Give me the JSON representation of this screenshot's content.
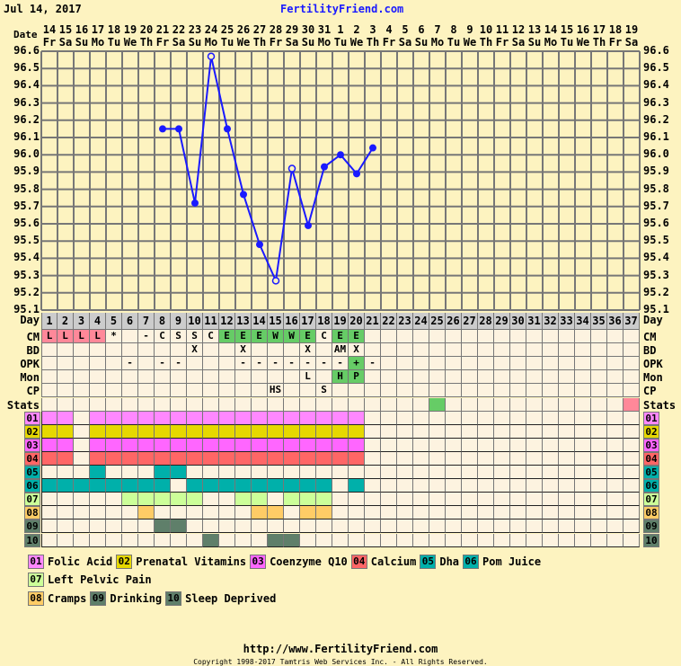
{
  "header": {
    "date": "Jul 14, 2017",
    "site": "FertilityFriend.com"
  },
  "labels": {
    "date": "Date",
    "day": "Day",
    "cm": "CM",
    "bd": "BD",
    "opk": "OPK",
    "mon": "Mon",
    "cp": "CP",
    "stats": "Stats"
  },
  "colors": {
    "bg": "#fdf3c0",
    "cell": "#fdf3e0",
    "header_row": "#cccccc",
    "line": "#1a1aff",
    "green": "#66cc66",
    "pink": "#ff8899",
    "grid": "#777777"
  },
  "chart_data": {
    "type": "line",
    "ylim": [
      95.1,
      96.6
    ],
    "yticks": [
      "96.6",
      "96.5",
      "96.4",
      "96.3",
      "96.2",
      "96.1",
      "96.0",
      "95.9",
      "95.8",
      "95.7",
      "95.6",
      "95.5",
      "95.4",
      "95.3",
      "95.2",
      "95.1"
    ],
    "dates": [
      "14",
      "15",
      "16",
      "17",
      "18",
      "19",
      "20",
      "21",
      "22",
      "23",
      "24",
      "25",
      "26",
      "27",
      "28",
      "29",
      "30",
      "31",
      "1",
      "2",
      "3",
      "4",
      "5",
      "6",
      "7",
      "8",
      "9",
      "10",
      "11",
      "12",
      "13",
      "14",
      "15",
      "16",
      "17",
      "18",
      "19"
    ],
    "weekdays": [
      "Fr",
      "Sa",
      "Su",
      "Mo",
      "Tu",
      "We",
      "Th",
      "Fr",
      "Sa",
      "Su",
      "Mo",
      "Tu",
      "We",
      "Th",
      "Fr",
      "Sa",
      "Su",
      "Mo",
      "Tu",
      "We",
      "Th",
      "Fr",
      "Sa",
      "Su",
      "Mo",
      "Tu",
      "We",
      "Th",
      "Fr",
      "Sa",
      "Su",
      "Mo",
      "Tu",
      "We",
      "Th",
      "Fr",
      "Sa"
    ],
    "days": [
      "1",
      "2",
      "3",
      "4",
      "5",
      "6",
      "7",
      "8",
      "9",
      "10",
      "11",
      "12",
      "13",
      "14",
      "15",
      "16",
      "17",
      "18",
      "19",
      "20",
      "21",
      "22",
      "23",
      "24",
      "25",
      "26",
      "27",
      "28",
      "29",
      "30",
      "31",
      "32",
      "33",
      "34",
      "35",
      "36",
      "37"
    ],
    "series": [
      {
        "x": [
          8,
          9,
          10,
          11,
          12,
          13,
          14,
          15,
          16,
          17,
          18,
          19,
          20,
          21
        ],
        "y": [
          96.15,
          96.15,
          95.72,
          96.57,
          96.15,
          95.77,
          95.48,
          95.27,
          95.92,
          95.59,
          95.93,
          96.0,
          95.89,
          96.04
        ],
        "open": [
          false,
          false,
          false,
          true,
          false,
          false,
          false,
          true,
          true,
          false,
          false,
          false,
          false,
          false
        ]
      }
    ]
  },
  "rows": {
    "cm": {
      "1": "L",
      "2": "L",
      "3": "L",
      "4": "L",
      "5": "*",
      "7": "-",
      "8": "C",
      "9": "S",
      "10": "S",
      "11": "C",
      "12": "E",
      "13": "E",
      "14": "E",
      "15": "W",
      "16": "W",
      "17": "E",
      "18": "C",
      "19": "E",
      "20": "E"
    },
    "cm_colors": {
      "1": "#ff8899",
      "2": "#ff8899",
      "3": "#ff8899",
      "4": "#ff8899",
      "12": "#66cc66",
      "13": "#66cc66",
      "14": "#66cc66",
      "15": "#66cc66",
      "16": "#66cc66",
      "17": "#66cc66",
      "19": "#66cc66",
      "20": "#66cc66"
    },
    "bd": {
      "10": "X",
      "13": "X",
      "17": "X",
      "19": "AM",
      "20": "X"
    },
    "opk": {
      "6": "-",
      "8": "-",
      "9": "-",
      "13": "-",
      "14": "-",
      "15": "-",
      "16": "-",
      "17": "-",
      "18": "-",
      "19": "-",
      "20": "+",
      "21": "-"
    },
    "opk_colors": {
      "20": "#66cc66"
    },
    "mon": {
      "17": "L",
      "19": "H",
      "20": "P"
    },
    "mon_colors": {
      "19": "#66cc66",
      "20": "#66cc66"
    },
    "cp": {
      "15": "HS",
      "18": "S"
    },
    "stats_colors": {
      "25": "#66cc66",
      "37": "#ff8899"
    }
  },
  "custom": [
    {
      "code": "01",
      "name": "Folic Acid",
      "color": "#ff88ff",
      "days": [
        1,
        2,
        4,
        5,
        6,
        7,
        8,
        9,
        10,
        11,
        12,
        13,
        14,
        15,
        16,
        17,
        18,
        19,
        20
      ]
    },
    {
      "code": "02",
      "name": "Prenatal Vitamins",
      "color": "#e6d800",
      "days": [
        1,
        2,
        4,
        5,
        6,
        7,
        8,
        9,
        10,
        11,
        12,
        13,
        14,
        15,
        16,
        17,
        18,
        19,
        20
      ]
    },
    {
      "code": "03",
      "name": "Coenzyme Q10",
      "color": "#ff66ff",
      "days": [
        1,
        2,
        4,
        5,
        6,
        7,
        8,
        9,
        10,
        11,
        12,
        13,
        14,
        15,
        16,
        17,
        18,
        19,
        20
      ]
    },
    {
      "code": "04",
      "name": "Calcium",
      "color": "#ff6666",
      "days": [
        1,
        2,
        4,
        5,
        6,
        7,
        8,
        9,
        10,
        11,
        12,
        13,
        14,
        15,
        16,
        17,
        18,
        19,
        20
      ]
    },
    {
      "code": "05",
      "name": "Dha",
      "color": "#00b0aa",
      "days": [
        4,
        8,
        9
      ]
    },
    {
      "code": "06",
      "name": "Pom Juice",
      "color": "#00b0aa",
      "days": [
        1,
        2,
        3,
        4,
        5,
        6,
        7,
        8,
        10,
        11,
        12,
        13,
        14,
        15,
        16,
        17,
        18,
        20
      ]
    },
    {
      "code": "07",
      "name": "Left Pelvic Pain",
      "color": "#ccff99",
      "days": [
        6,
        7,
        8,
        9,
        10,
        13,
        14,
        16,
        17,
        18
      ]
    },
    {
      "code": "08",
      "name": "Cramps",
      "color": "#ffcc66",
      "days": [
        7,
        14,
        15,
        17,
        18
      ]
    },
    {
      "code": "09",
      "name": "Drinking",
      "color": "#5f7f6a",
      "days": [
        8,
        9
      ]
    },
    {
      "code": "10",
      "name": "Sleep Deprived",
      "color": "#5f7f6a",
      "days": [
        11,
        15,
        16
      ]
    }
  ],
  "footer": {
    "url": "http://www.FertilityFriend.com",
    "copyright": "Copyright 1998-2017 Tamtris Web Services Inc. - All Rights Reserved."
  }
}
